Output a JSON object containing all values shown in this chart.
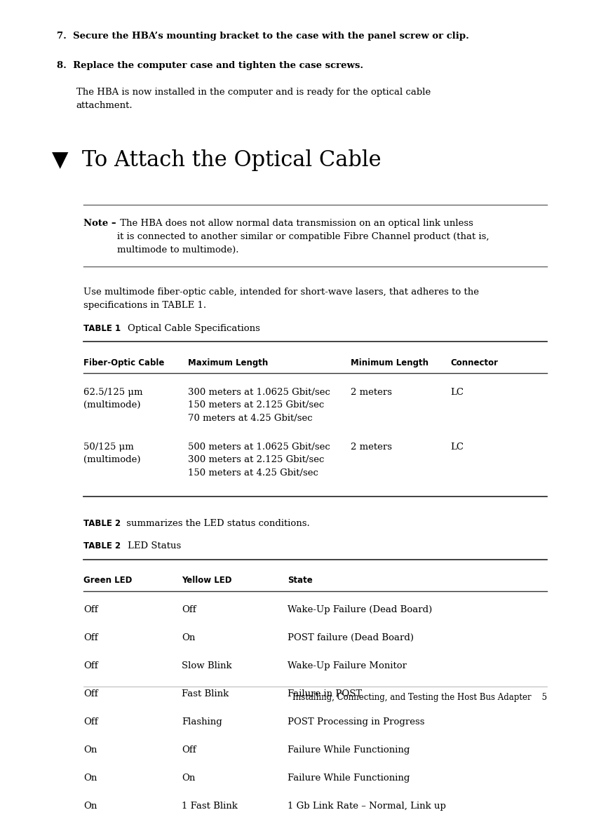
{
  "bg_color": "#ffffff",
  "text_color": "#000000",
  "step7_bold": "7.  Secure the HBA’s mounting bracket to the case with the panel screw or clip.",
  "step8_bold": "8.  Replace the computer case and tighten the case screws.",
  "step8_body": "The HBA is now installed in the computer and is ready for the optical cable\nattachment.",
  "section_title": "▼  To Attach the Optical Cable",
  "note_bold": "Note –",
  "note_body": " The HBA does not allow normal data transmission on an optical link unless\nit is connected to another similar or compatible Fibre Channel product (that is,\nmultimode to multimode).",
  "para1": "Use multimode fiber-optic cable, intended for short-wave lasers, that adheres to the\nspecifications in TABLE 1.",
  "table1_label": "TABLE 1",
  "table1_title": "Optical Cable Specifications",
  "table1_headers": [
    "Fiber-Optic Cable",
    "Maximum Length",
    "Minimum Length",
    "Connector"
  ],
  "table1_col1": [
    "62.5/125 μm\n(multimode)",
    "50/125 μm\n(multimode)"
  ],
  "table1_col2": [
    "300 meters at 1.0625 Gbit/sec\n150 meters at 2.125 Gbit/sec\n70 meters at 4.25 Gbit/sec",
    "500 meters at 1.0625 Gbit/sec\n300 meters at 2.125 Gbit/sec\n150 meters at 4.25 Gbit/sec"
  ],
  "table1_col3": [
    "2 meters",
    "2 meters"
  ],
  "table1_col4": [
    "LC",
    "LC"
  ],
  "table2_intro_bold": "TABLE 2",
  "table2_intro_rest": " summarizes the LED status conditions.",
  "table2_label": "TABLE 2",
  "table2_title": "LED Status",
  "table2_headers": [
    "Green LED",
    "Yellow LED",
    "State"
  ],
  "table2_rows": [
    [
      "Off",
      "Off",
      "Wake-Up Failure (Dead Board)"
    ],
    [
      "Off",
      "On",
      "POST failure (Dead Board)"
    ],
    [
      "Off",
      "Slow Blink",
      "Wake-Up Failure Monitor"
    ],
    [
      "Off",
      "Fast Blink",
      "Failure in POST"
    ],
    [
      "Off",
      "Flashing",
      "POST Processing in Progress"
    ],
    [
      "On",
      "Off",
      "Failure While Functioning"
    ],
    [
      "On",
      "On",
      "Failure While Functioning"
    ],
    [
      "On",
      "1 Fast Blink",
      "1 Gb Link Rate – Normal, Link up"
    ]
  ],
  "footer_text": "Installing, Connecting, and Testing the Host Bus Adapter",
  "footer_page": "5",
  "line_color_dark": "#333333",
  "line_color_mid": "#666666",
  "line_color_light": "#aaaaaa"
}
